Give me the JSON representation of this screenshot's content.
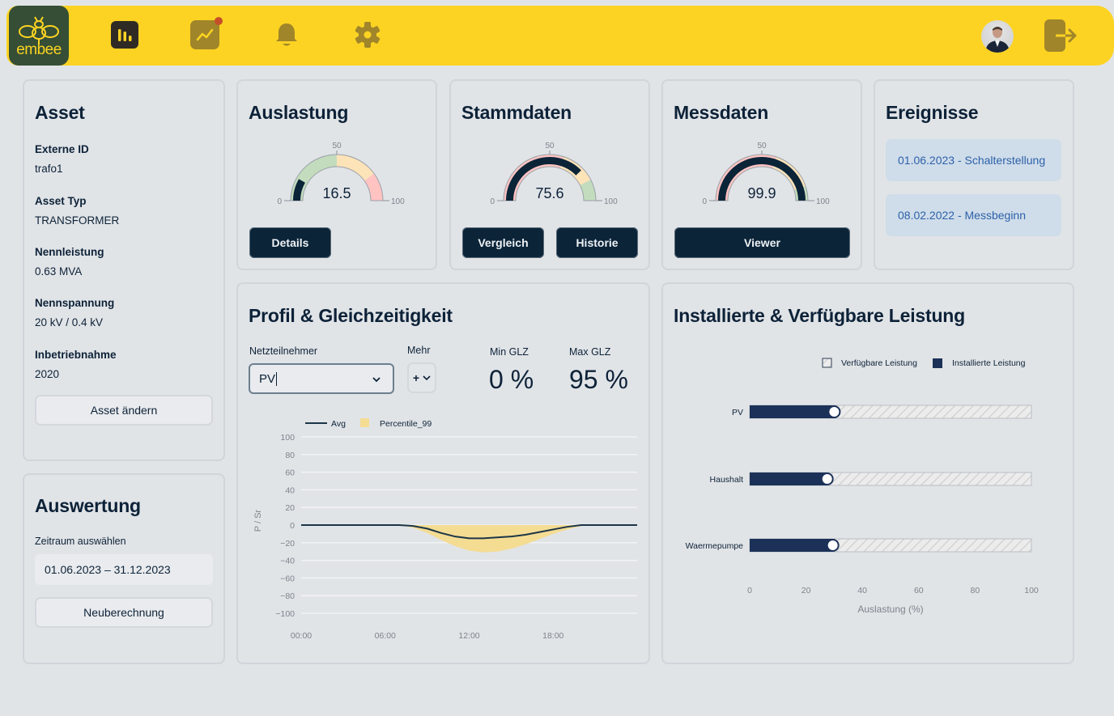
{
  "topbar": {
    "logo_text": "embee",
    "nav": [
      {
        "icon": "bar-chart-icon",
        "active": true
      },
      {
        "icon": "trend-chart-icon",
        "active": false,
        "notification": true
      },
      {
        "icon": "bell-icon",
        "active": false
      },
      {
        "icon": "gear-icon",
        "active": false
      }
    ],
    "avatar": "user-avatar",
    "logout_icon": "logout-icon"
  },
  "asset": {
    "title": "Asset",
    "fields": [
      {
        "label": "Externe ID",
        "value": "trafo1"
      },
      {
        "label": "Asset Typ",
        "value": "TRANSFORMER"
      },
      {
        "label": "Nennleistung",
        "value": "0.63 MVA"
      },
      {
        "label": "Nennspannung",
        "value": "20 kV / 0.4 kV"
      },
      {
        "label": "Inbetriebnahme",
        "value": "2020"
      }
    ],
    "edit_button": "Asset ändern"
  },
  "auswertung": {
    "title": "Auswertung",
    "period_label": "Zeitraum auswählen",
    "period_value": "01.06.2023 – 31.12.2023",
    "recalc_button": "Neuberechnung"
  },
  "gauges": [
    {
      "title": "Auslastung",
      "value": 16.5,
      "value_text": "16.5",
      "min": "0",
      "mid": "50",
      "max": "100",
      "bands": [
        "#c3dcbd",
        "#fde3b8",
        "#ffc4c2"
      ],
      "band_stops": [
        0,
        50,
        80,
        100
      ],
      "buttons": [
        "Details"
      ]
    },
    {
      "title": "Stammdaten",
      "value": 75.6,
      "value_text": "75.6",
      "min": "0",
      "mid": "50",
      "max": "100",
      "bands": [
        "#ffc4c2",
        "#fde3b8",
        "#c3dcbd"
      ],
      "band_stops": [
        0,
        60,
        85,
        100
      ],
      "buttons": [
        "Vergleich",
        "Historie"
      ]
    },
    {
      "title": "Messdaten",
      "value": 99.9,
      "value_text": "99.9",
      "min": "0",
      "mid": "50",
      "max": "100",
      "bands": [
        "#ffc4c2",
        "#fde3b8",
        "#c3dcbd"
      ],
      "band_stops": [
        0,
        60,
        90,
        100
      ],
      "buttons": [
        "Viewer"
      ]
    }
  ],
  "events": {
    "title": "Ereignisse",
    "items": [
      "01.06.2023 - Schalterstellung",
      "08.02.2022 - Messbeginn"
    ]
  },
  "profil": {
    "title": "Profil & Gleichzeitigkeit",
    "participant_label": "Netzteilnehmer",
    "participant_value": "PV",
    "mehr_label": "Mehr",
    "mehr_button": "+",
    "min_glz_label": "Min GLZ",
    "min_glz_value": "0 %",
    "max_glz_label": "Max GLZ",
    "max_glz_value": "95 %"
  },
  "leistung": {
    "title": "Installierte & Verfügbare Leistung"
  },
  "chart_data": [
    {
      "type": "area",
      "title": "Profil & Gleichzeitigkeit",
      "xlabel": "",
      "ylabel": "P / Sr",
      "ylim": [
        -100,
        100
      ],
      "yticks": [
        "100",
        "80",
        "60",
        "40",
        "20",
        "0",
        "−20",
        "−40",
        "−60",
        "−80",
        "−100"
      ],
      "xticks": [
        "00:00",
        "06:00",
        "12:00",
        "18:00"
      ],
      "xlim_hours": [
        0,
        24
      ],
      "grid": true,
      "legend_position": "top-left",
      "colors": {
        "avg": "#1c3547",
        "p99": "#f4dc93"
      },
      "series": [
        {
          "name": "Avg",
          "kind": "line",
          "x": [
            0,
            6,
            7,
            8,
            9,
            10,
            11,
            12,
            13,
            14,
            15,
            16,
            17,
            18,
            19,
            20,
            21,
            22,
            24
          ],
          "y": [
            0,
            0,
            0,
            -1,
            -4,
            -9,
            -13,
            -15,
            -15,
            -14,
            -13,
            -11,
            -8,
            -5,
            -2,
            0,
            0,
            0,
            0
          ]
        },
        {
          "name": "Percentile_99",
          "kind": "area",
          "x": [
            0,
            6,
            7,
            8,
            9,
            10,
            11,
            12,
            13,
            14,
            15,
            16,
            17,
            18,
            19,
            20,
            21,
            22,
            24
          ],
          "y": [
            0,
            0,
            0,
            -3,
            -9,
            -17,
            -24,
            -29,
            -31,
            -30,
            -27,
            -22,
            -16,
            -10,
            -5,
            -1,
            0,
            0,
            0
          ]
        }
      ]
    },
    {
      "type": "bar",
      "title": "Installierte & Verfügbare Leistung",
      "xlabel": "Auslastung (%)",
      "xlim": [
        0,
        100
      ],
      "xticks": [
        "0",
        "20",
        "40",
        "60",
        "80",
        "100"
      ],
      "legend_position": "top-right",
      "legend": [
        "Verfügbare Leistung",
        "Installierte Leistung"
      ],
      "categories": [
        "PV",
        "Haushalt",
        "Waermepumpe"
      ],
      "series": [
        {
          "name": "Installierte Leistung",
          "values": [
            30,
            27.5,
            29.5
          ],
          "color": "#1b3158"
        },
        {
          "name": "Verfügbare Leistung",
          "values": [
            100,
            100,
            100
          ],
          "color": "#ececec"
        }
      ]
    }
  ]
}
